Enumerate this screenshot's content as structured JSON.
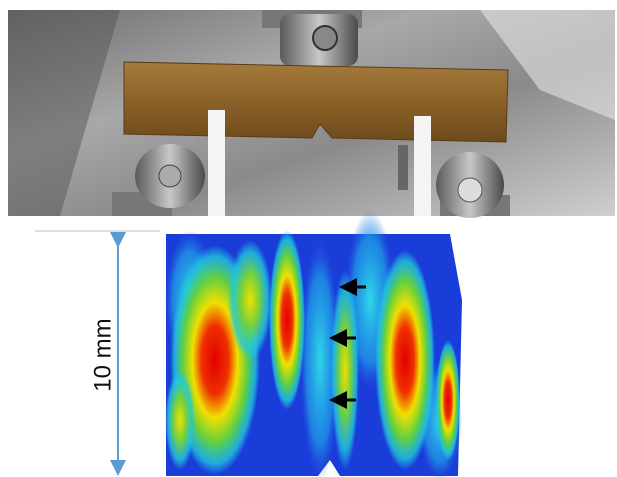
{
  "scale_label": "10 mm"
}
